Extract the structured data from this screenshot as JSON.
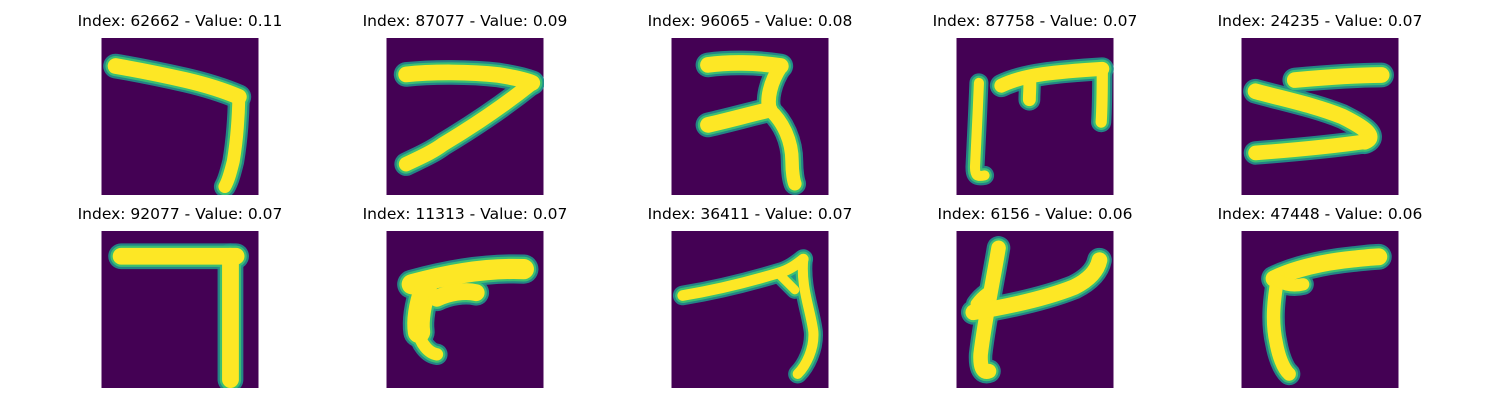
{
  "colors": {
    "background": "#440154",
    "edge": "#21918c",
    "mid": "#3bbf73",
    "stroke": "#fde725"
  },
  "panels": [
    {
      "title": "Index: 62662 - Value: 0.11",
      "glyph": "seven-hook-icon"
    },
    {
      "title": "Index: 87077 - Value: 0.09",
      "glyph": "seven-slanted-icon"
    },
    {
      "title": "Index: 96065 - Value: 0.08",
      "glyph": "three-curled-icon"
    },
    {
      "title": "Index: 87758 - Value: 0.07",
      "glyph": "trident-icon"
    },
    {
      "title": "Index: 24235 - Value: 0.07",
      "glyph": "zigzag-icon"
    },
    {
      "title": "Index: 92077 - Value: 0.07",
      "glyph": "seven-square-icon"
    },
    {
      "title": "Index: 11313 - Value: 0.07",
      "glyph": "flag-curve-icon"
    },
    {
      "title": "Index: 36411 - Value: 0.07",
      "glyph": "seven-thin-icon"
    },
    {
      "title": "Index: 6156 - Value: 0.06",
      "glyph": "cross-curve-icon"
    },
    {
      "title": "Index: 47448 - Value: 0.06",
      "glyph": "corner-curve-icon"
    }
  ]
}
